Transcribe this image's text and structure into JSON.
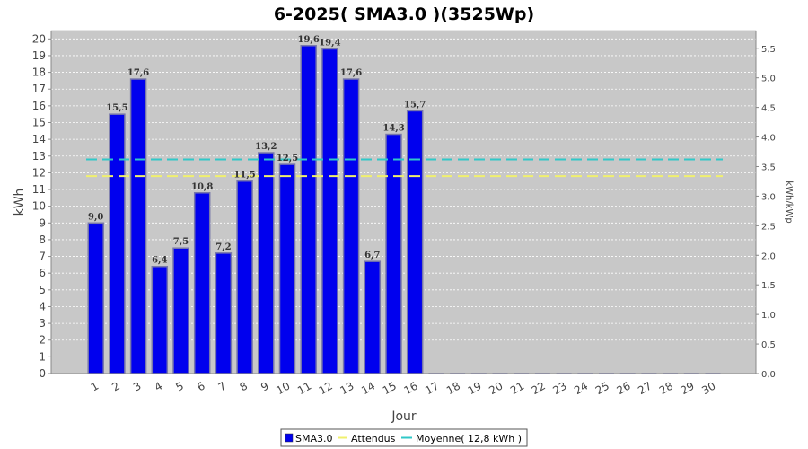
{
  "chart_data": {
    "type": "bar",
    "title": "6-2025( SMA3.0 )(3525Wp)",
    "xlabel": "Jour",
    "ylabel": "kWh",
    "y2label": "kWh/kWp",
    "categories": [
      "1",
      "2",
      "3",
      "4",
      "5",
      "6",
      "7",
      "8",
      "9",
      "10",
      "11",
      "12",
      "13",
      "14",
      "15",
      "16",
      "17",
      "18",
      "19",
      "20",
      "21",
      "22",
      "23",
      "24",
      "25",
      "26",
      "27",
      "28",
      "29",
      "30"
    ],
    "series": [
      {
        "name": "SMA3.0",
        "values": [
          9.0,
          15.5,
          17.6,
          6.4,
          7.5,
          10.8,
          7.2,
          11.5,
          13.2,
          12.5,
          19.6,
          19.4,
          17.6,
          6.7,
          14.3,
          15.7,
          0,
          0,
          0,
          0,
          0,
          0,
          0,
          0,
          0,
          0,
          0,
          0,
          0,
          0
        ],
        "labels": [
          "9,0",
          "15,5",
          "17,6",
          "6,4",
          "7,5",
          "10,8",
          "7,2",
          "11,5",
          "13,2",
          "12,5",
          "19,6",
          "19,4",
          "17,6",
          "6,7",
          "14,3",
          "15,7",
          "",
          "",
          "",
          "",
          "",
          "",
          "",
          "",
          "",
          "",
          "",
          "",
          "",
          ""
        ]
      }
    ],
    "lines": [
      {
        "name": "Attendus",
        "value": 11.8
      },
      {
        "name": "Moyenne( 12,8 kWh )",
        "value": 12.8
      }
    ],
    "ylim": [
      0,
      20.5
    ],
    "yticks": [
      "0",
      "1",
      "2",
      "3",
      "4",
      "5",
      "6",
      "7",
      "8",
      "9",
      "10",
      "11",
      "12",
      "13",
      "14",
      "15",
      "16",
      "17",
      "18",
      "19",
      "20"
    ],
    "y2lim": [
      0,
      5.8
    ],
    "y2ticks": [
      "0,0",
      "0,5",
      "1,0",
      "1,5",
      "2,0",
      "2,5",
      "3,0",
      "3,5",
      "4,0",
      "4,5",
      "5,0",
      "5,5"
    ],
    "grid": true,
    "legend_position": "bottom",
    "colors": {
      "bar": "#0000ee",
      "bar_edge": "#7777aa",
      "attendus": "#f0f06e",
      "moyenne": "#30c8c8",
      "plot_bg": "#c8c8c8"
    }
  }
}
